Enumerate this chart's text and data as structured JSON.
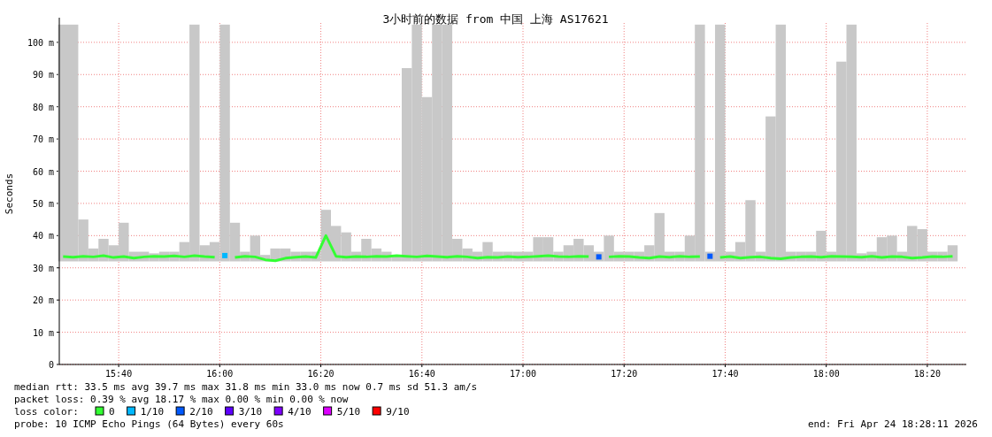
{
  "chart_data": {
    "type": "bar",
    "title": "3小时前的数据 from 中国 上海 AS17621",
    "ylabel": "Seconds",
    "xlim": [
      15.4708,
      18.462
    ],
    "ylim": [
      0,
      106
    ],
    "xticks": [
      {
        "value": 15.6667,
        "label": "15:40"
      },
      {
        "value": 16,
        "label": "16:00"
      },
      {
        "value": 16.3333,
        "label": "16:20"
      },
      {
        "value": 16.6667,
        "label": "16:40"
      },
      {
        "value": 17,
        "label": "17:00"
      },
      {
        "value": 17.3333,
        "label": "17:20"
      },
      {
        "value": 17.6667,
        "label": "17:40"
      },
      {
        "value": 18,
        "label": "18:00"
      },
      {
        "value": 18.3333,
        "label": "18:20"
      }
    ],
    "yticks": [
      0,
      {
        "value": 10,
        "label": "10 m"
      },
      {
        "value": 20,
        "label": "20 m"
      },
      {
        "value": 30,
        "label": "30 m"
      },
      {
        "value": 40,
        "label": "40 m"
      },
      {
        "value": 50,
        "label": "50 m"
      },
      {
        "value": 60,
        "label": "60 m"
      },
      {
        "value": 70,
        "label": "70 m"
      },
      {
        "value": 80,
        "label": "80 m"
      },
      {
        "value": 90,
        "label": "90 m"
      },
      {
        "value": 100,
        "label": "100 m"
      }
    ],
    "grid": true,
    "legend": "bottom",
    "x": [
      15.4833,
      15.5167,
      15.55,
      15.5833,
      15.6167,
      15.65,
      15.6833,
      15.7167,
      15.75,
      15.7833,
      15.8167,
      15.85,
      15.8833,
      15.9167,
      15.95,
      15.9833,
      16.0167,
      16.05,
      16.0833,
      16.1167,
      16.15,
      16.1833,
      16.2167,
      16.25,
      16.2833,
      16.3167,
      16.35,
      16.3833,
      16.4167,
      16.45,
      16.4833,
      16.5167,
      16.55,
      16.5833,
      16.6167,
      16.65,
      16.6833,
      16.7167,
      16.75,
      16.7833,
      16.8167,
      16.85,
      16.8833,
      16.9167,
      16.95,
      16.9833,
      17.0167,
      17.05,
      17.0833,
      17.1167,
      17.15,
      17.1833,
      17.2167,
      17.25,
      17.2833,
      17.3167,
      17.35,
      17.3833,
      17.4167,
      17.45,
      17.4833,
      17.5167,
      17.55,
      17.5833,
      17.6167,
      17.65,
      17.6833,
      17.7167,
      17.75,
      17.7833,
      17.8167,
      17.85,
      17.8833,
      17.9167,
      17.95,
      17.9833,
      18.0167,
      18.05,
      18.0833,
      18.1167,
      18.15,
      18.1833,
      18.2167,
      18.25,
      18.2833,
      18.3167,
      18.35,
      18.3833,
      18.4167
    ],
    "series": [
      {
        "color": "#c8c8c8",
        "base": [
          32,
          32,
          32,
          32,
          32,
          32,
          32,
          32,
          32,
          32,
          32,
          32,
          32,
          32,
          32,
          32,
          32,
          32,
          32,
          32,
          32,
          32,
          32,
          32,
          32,
          32,
          32,
          32,
          32,
          32,
          32,
          32,
          32,
          32,
          32,
          32,
          32,
          32,
          32,
          32,
          32,
          32,
          32,
          32,
          32,
          32,
          32,
          32,
          32,
          32,
          32,
          32,
          32,
          32,
          32,
          32,
          32,
          32,
          32,
          32,
          32,
          32,
          32,
          32,
          32,
          32,
          32,
          32,
          32,
          32,
          32,
          32,
          32,
          32,
          32,
          32,
          32,
          32,
          32,
          32,
          32,
          32,
          32,
          32,
          32,
          32,
          32,
          32,
          32
        ],
        "values": [
          73.5,
          73.5,
          13,
          4,
          7,
          5,
          12,
          3,
          3,
          2.5,
          3,
          3,
          6,
          73.5,
          5,
          6,
          73.5,
          12,
          3,
          8,
          2,
          4,
          4,
          3,
          3,
          3,
          16,
          11,
          9,
          3,
          7,
          4,
          3,
          2,
          60,
          73.5,
          51,
          73.5,
          73.5,
          7,
          4,
          3,
          6,
          3,
          3,
          3,
          3,
          7.5,
          7.5,
          3,
          5,
          7,
          5,
          3,
          8,
          3,
          3,
          3,
          5,
          15,
          3,
          3,
          8,
          73.5,
          3,
          73.5,
          3,
          6,
          19,
          3,
          45,
          73.5,
          3,
          3,
          3,
          9.5,
          3,
          62,
          73.5,
          2.5,
          3,
          7.5,
          8,
          3,
          11,
          10,
          3,
          3,
          5
        ]
      },
      {
        "type": "line",
        "name": "0",
        "color": "#33ff33",
        "values": [
          33.5,
          33.3,
          33.6,
          33.4,
          33.8,
          33.2,
          33.5,
          33,
          33.4,
          33.6,
          33.5,
          33.7,
          33.4,
          33.8,
          33.5,
          33.3,
          null,
          33.2,
          33.6,
          33.4,
          32.5,
          32.2,
          33,
          33.3,
          33.5,
          33.2,
          40,
          33.6,
          33.3,
          33.5,
          33.4,
          33.6,
          33.5,
          33.8,
          33.6,
          33.4,
          33.7,
          33.5,
          33.3,
          33.6,
          33.4,
          33,
          33.3,
          33.2,
          33.5,
          33.3,
          33.4,
          33.6,
          33.8,
          33.5,
          33.4,
          33.6,
          33.5,
          null,
          33.4,
          33.6,
          33.5,
          33.2,
          33,
          33.5,
          33.3,
          33.6,
          33.4,
          33.5,
          null,
          33.2,
          33.5,
          33,
          33.3,
          33.4,
          33,
          32.8,
          33.2,
          33.4,
          33.5,
          33.3,
          33.6,
          33.5,
          33.4,
          33.3,
          33.6,
          33.2,
          33.5,
          33.4,
          33,
          33.2,
          33.5,
          33.4,
          33.6
        ]
      },
      {
        "type": "scatter",
        "marker": "square",
        "name": "1/10",
        "color": "#00b8ff",
        "values": [
          null,
          null,
          null,
          null,
          null,
          null,
          null,
          null,
          null,
          null,
          null,
          null,
          null,
          null,
          null,
          null,
          33.8,
          null,
          null,
          null,
          null,
          null,
          null,
          null,
          null,
          null,
          null,
          null,
          null,
          null,
          null,
          null,
          null,
          null,
          null,
          null,
          null,
          null,
          null,
          null,
          null,
          null,
          null,
          null,
          null,
          null,
          null,
          null,
          null,
          null,
          null,
          null,
          null,
          null,
          null,
          null,
          null,
          null,
          null,
          null,
          null,
          null,
          null,
          null,
          null,
          null,
          null,
          null,
          null,
          null,
          null,
          null,
          null,
          null,
          null,
          null,
          null,
          null,
          null,
          null,
          null,
          null,
          null,
          null,
          null,
          null,
          null,
          null,
          null
        ]
      },
      {
        "type": "scatter",
        "marker": "square",
        "name": "2/10",
        "color": "#0059ff",
        "values": [
          null,
          null,
          null,
          null,
          null,
          null,
          null,
          null,
          null,
          null,
          null,
          null,
          null,
          null,
          null,
          null,
          null,
          null,
          null,
          null,
          null,
          null,
          null,
          null,
          null,
          null,
          null,
          null,
          null,
          null,
          null,
          null,
          null,
          null,
          null,
          null,
          null,
          null,
          null,
          null,
          null,
          null,
          null,
          null,
          null,
          null,
          null,
          null,
          null,
          null,
          null,
          null,
          null,
          33.4,
          null,
          null,
          null,
          null,
          null,
          null,
          null,
          null,
          null,
          null,
          33.6,
          null,
          null,
          null,
          null,
          null,
          null,
          null,
          null,
          null,
          null,
          null,
          null,
          null,
          null,
          null,
          null,
          null,
          null,
          null,
          null,
          null,
          null,
          null,
          null
        ]
      },
      {
        "type": "scatter",
        "marker": "square",
        "name": "3/10",
        "color": "#5e00ff",
        "values": [
          null,
          null,
          null,
          null,
          null,
          null,
          null,
          null,
          null,
          null,
          null,
          null,
          null,
          null,
          null,
          null,
          null,
          null,
          null,
          null,
          null,
          null,
          null,
          null,
          null,
          null,
          null,
          null,
          null,
          null,
          null,
          null,
          null,
          null,
          null,
          null,
          null,
          null,
          null,
          null,
          null,
          null,
          null,
          null,
          null,
          null,
          null,
          null,
          null,
          null,
          null,
          null,
          null,
          null,
          null,
          null,
          null,
          null,
          null,
          null,
          null,
          null,
          null,
          null,
          null,
          null,
          null,
          null,
          null,
          null,
          null,
          null,
          null,
          null,
          null,
          null,
          null,
          null,
          null,
          null,
          null,
          null,
          null,
          null,
          null,
          null,
          null,
          null,
          null
        ]
      },
      {
        "type": "scatter",
        "marker": "square",
        "name": "4/10",
        "color": "#7e00ff",
        "values": [
          null,
          null,
          null,
          null,
          null,
          null,
          null,
          null,
          null,
          null,
          null,
          null,
          null,
          null,
          null,
          null,
          null,
          null,
          null,
          null,
          null,
          null,
          null,
          null,
          null,
          null,
          null,
          null,
          null,
          null,
          null,
          null,
          null,
          null,
          null,
          null,
          null,
          null,
          null,
          null,
          null,
          null,
          null,
          null,
          null,
          null,
          null,
          null,
          null,
          null,
          null,
          null,
          null,
          null,
          null,
          null,
          null,
          null,
          null,
          null,
          null,
          null,
          null,
          null,
          null,
          null,
          null,
          null,
          null,
          null,
          null,
          null,
          null,
          null,
          null,
          null,
          null,
          null,
          null,
          null,
          null,
          null,
          null,
          null,
          null,
          null,
          null,
          null,
          null
        ]
      },
      {
        "type": "scatter",
        "marker": "square",
        "name": "5/10",
        "color": "#dd00ff",
        "values": [
          null,
          null,
          null,
          null,
          null,
          null,
          null,
          null,
          null,
          null,
          null,
          null,
          null,
          null,
          null,
          null,
          null,
          null,
          null,
          null,
          null,
          null,
          null,
          null,
          null,
          null,
          null,
          null,
          null,
          null,
          null,
          null,
          null,
          null,
          null,
          null,
          null,
          null,
          null,
          null,
          null,
          null,
          null,
          null,
          null,
          null,
          null,
          null,
          null,
          null,
          null,
          null,
          null,
          null,
          null,
          null,
          null,
          null,
          null,
          null,
          null,
          null,
          null,
          null,
          null,
          null,
          null,
          null,
          null,
          null,
          null,
          null,
          null,
          null,
          null,
          null,
          null,
          null,
          null,
          null,
          null,
          null,
          null,
          null,
          null,
          null,
          null,
          null,
          null
        ]
      },
      {
        "type": "scatter",
        "marker": "square",
        "name": "9/10",
        "color": "#ff0000",
        "values": [
          null,
          null,
          null,
          null,
          null,
          null,
          null,
          null,
          null,
          null,
          null,
          null,
          null,
          null,
          null,
          null,
          null,
          null,
          null,
          null,
          null,
          null,
          null,
          null,
          null,
          null,
          null,
          null,
          null,
          null,
          null,
          null,
          null,
          null,
          null,
          null,
          null,
          null,
          null,
          null,
          null,
          null,
          null,
          null,
          null,
          null,
          null,
          null,
          null,
          null,
          null,
          null,
          null,
          null,
          null,
          null,
          null,
          null,
          null,
          null,
          null,
          null,
          null,
          null,
          null,
          null,
          null,
          null,
          null,
          null,
          null,
          null,
          null,
          null,
          null,
          null,
          null,
          null,
          null,
          null,
          null,
          null,
          null,
          null,
          null,
          null,
          null,
          null,
          null
        ]
      }
    ],
    "annotations": [
      "median rtt:  33.5 ms avg  39.7 ms max  31.8 ms min  33.0 ms now  0.7 ms sd  51.3   am/s",
      "packet loss: 0.39 % avg  18.17 % max  0.00 % min  0.00 % now",
      "loss color:",
      "probe:       10 ICMP Echo Pings (64 Bytes) every 60s",
      "end: Fri Apr 24 18:28:11 2026"
    ]
  }
}
